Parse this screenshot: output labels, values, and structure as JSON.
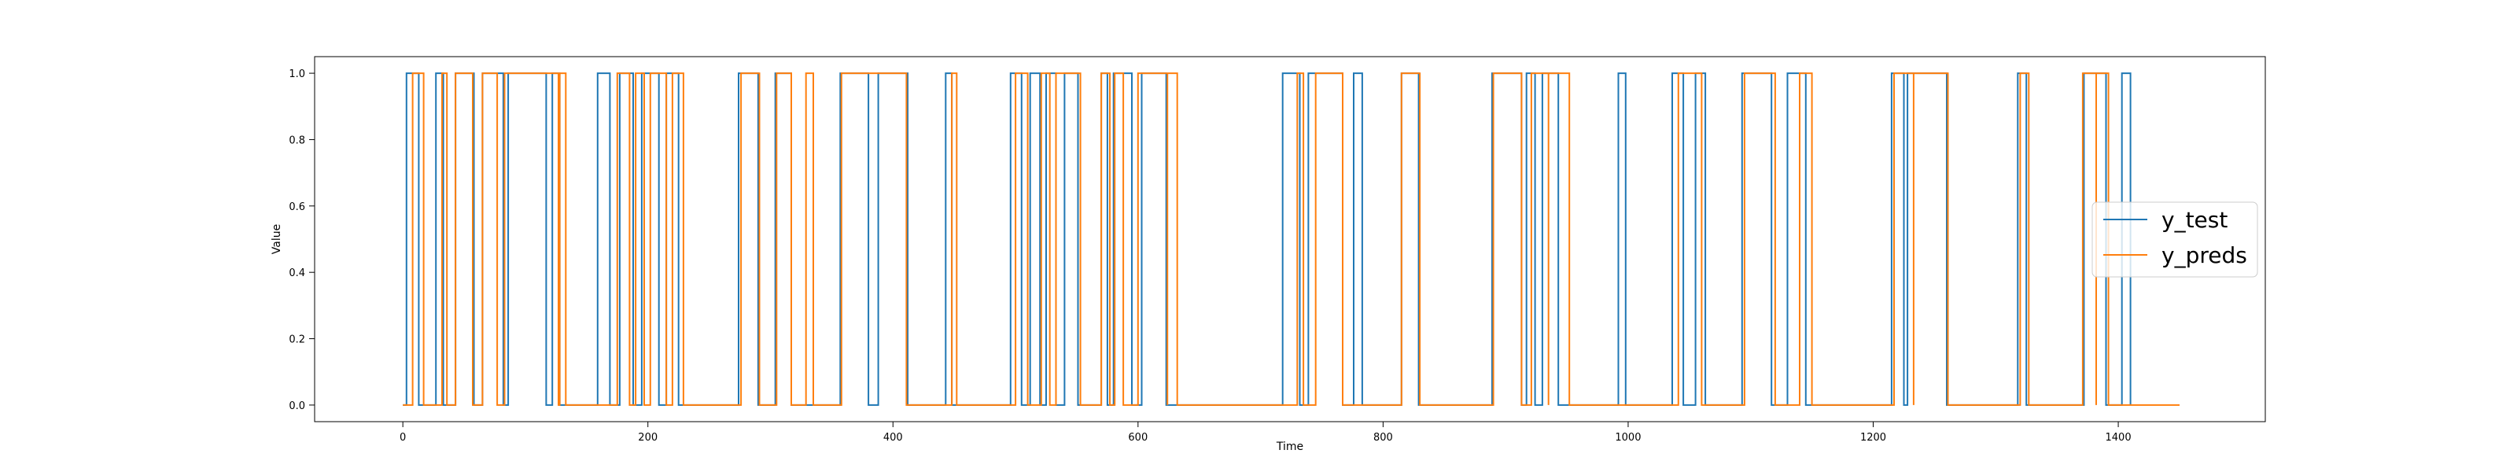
{
  "chart_data": {
    "type": "line",
    "title": "",
    "xlabel": "Time",
    "ylabel": "Value",
    "xlim": [
      -72,
      1520
    ],
    "ylim": [
      -0.05,
      1.05
    ],
    "x_ticks": [
      0,
      200,
      400,
      600,
      800,
      1000,
      1200,
      1400
    ],
    "y_ticks": [
      0.0,
      0.2,
      0.4,
      0.6,
      0.8,
      1.0
    ],
    "y_tick_labels": [
      "0.0",
      "0.2",
      "0.4",
      "0.6",
      "0.8",
      "1.0"
    ],
    "grid": false,
    "legend": {
      "placement": "center-right"
    },
    "series": [
      {
        "name": "y_test",
        "color": "#1f77b4",
        "x_range": [
          0,
          1410
        ],
        "high_intervals": [
          [
            3,
            13
          ],
          [
            27,
            33
          ],
          [
            43,
            58
          ],
          [
            65,
            82
          ],
          [
            86,
            117
          ],
          [
            122,
            128
          ],
          [
            159,
            169
          ],
          [
            177,
            188
          ],
          [
            195,
            209
          ],
          [
            215,
            225
          ],
          [
            274,
            290
          ],
          [
            304,
            317
          ],
          [
            357,
            380
          ],
          [
            388,
            412
          ],
          [
            443,
            448
          ],
          [
            496,
            505
          ],
          [
            512,
            520
          ],
          [
            525,
            533
          ],
          [
            540,
            551
          ],
          [
            570,
            575
          ],
          [
            580,
            595
          ],
          [
            603,
            623
          ],
          [
            718,
            732
          ],
          [
            739,
            767
          ],
          [
            776,
            783
          ],
          [
            815,
            829
          ],
          [
            889,
            913
          ],
          [
            917,
            924
          ],
          [
            930,
            943
          ],
          [
            992,
            998
          ],
          [
            1036,
            1045
          ],
          [
            1055,
            1063
          ],
          [
            1093,
            1117
          ],
          [
            1130,
            1145
          ],
          [
            1215,
            1225
          ],
          [
            1228,
            1260
          ],
          [
            1318,
            1325
          ],
          [
            1372,
            1390
          ],
          [
            1403,
            1410
          ]
        ]
      },
      {
        "name": "y_preds",
        "color": "#ff7f0e",
        "x_range": [
          0,
          1450
        ],
        "high_intervals": [
          [
            8,
            17
          ],
          [
            32,
            36
          ],
          [
            43,
            57
          ],
          [
            65,
            77
          ],
          [
            83,
            127
          ],
          [
            128,
            133
          ],
          [
            175,
            185
          ],
          [
            190,
            197
          ],
          [
            202,
            215
          ],
          [
            220,
            229
          ],
          [
            276,
            291
          ],
          [
            305,
            317
          ],
          [
            329,
            335
          ],
          [
            358,
            411
          ],
          [
            448,
            452
          ],
          [
            500,
            510
          ],
          [
            521,
            528
          ],
          [
            533,
            553
          ],
          [
            570,
            577
          ],
          [
            581,
            588
          ],
          [
            600,
            624
          ],
          [
            624,
            632
          ],
          [
            730,
            735
          ],
          [
            745,
            767
          ],
          [
            815,
            830
          ],
          [
            890,
            913
          ],
          [
            921,
            935
          ],
          [
            935,
            952
          ],
          [
            1041,
            1060
          ],
          [
            1095,
            1120
          ],
          [
            1140,
            1150
          ],
          [
            1217,
            1233
          ],
          [
            1233,
            1261
          ],
          [
            1320,
            1327
          ],
          [
            1371,
            1382
          ],
          [
            1382,
            1392
          ]
        ]
      }
    ]
  }
}
